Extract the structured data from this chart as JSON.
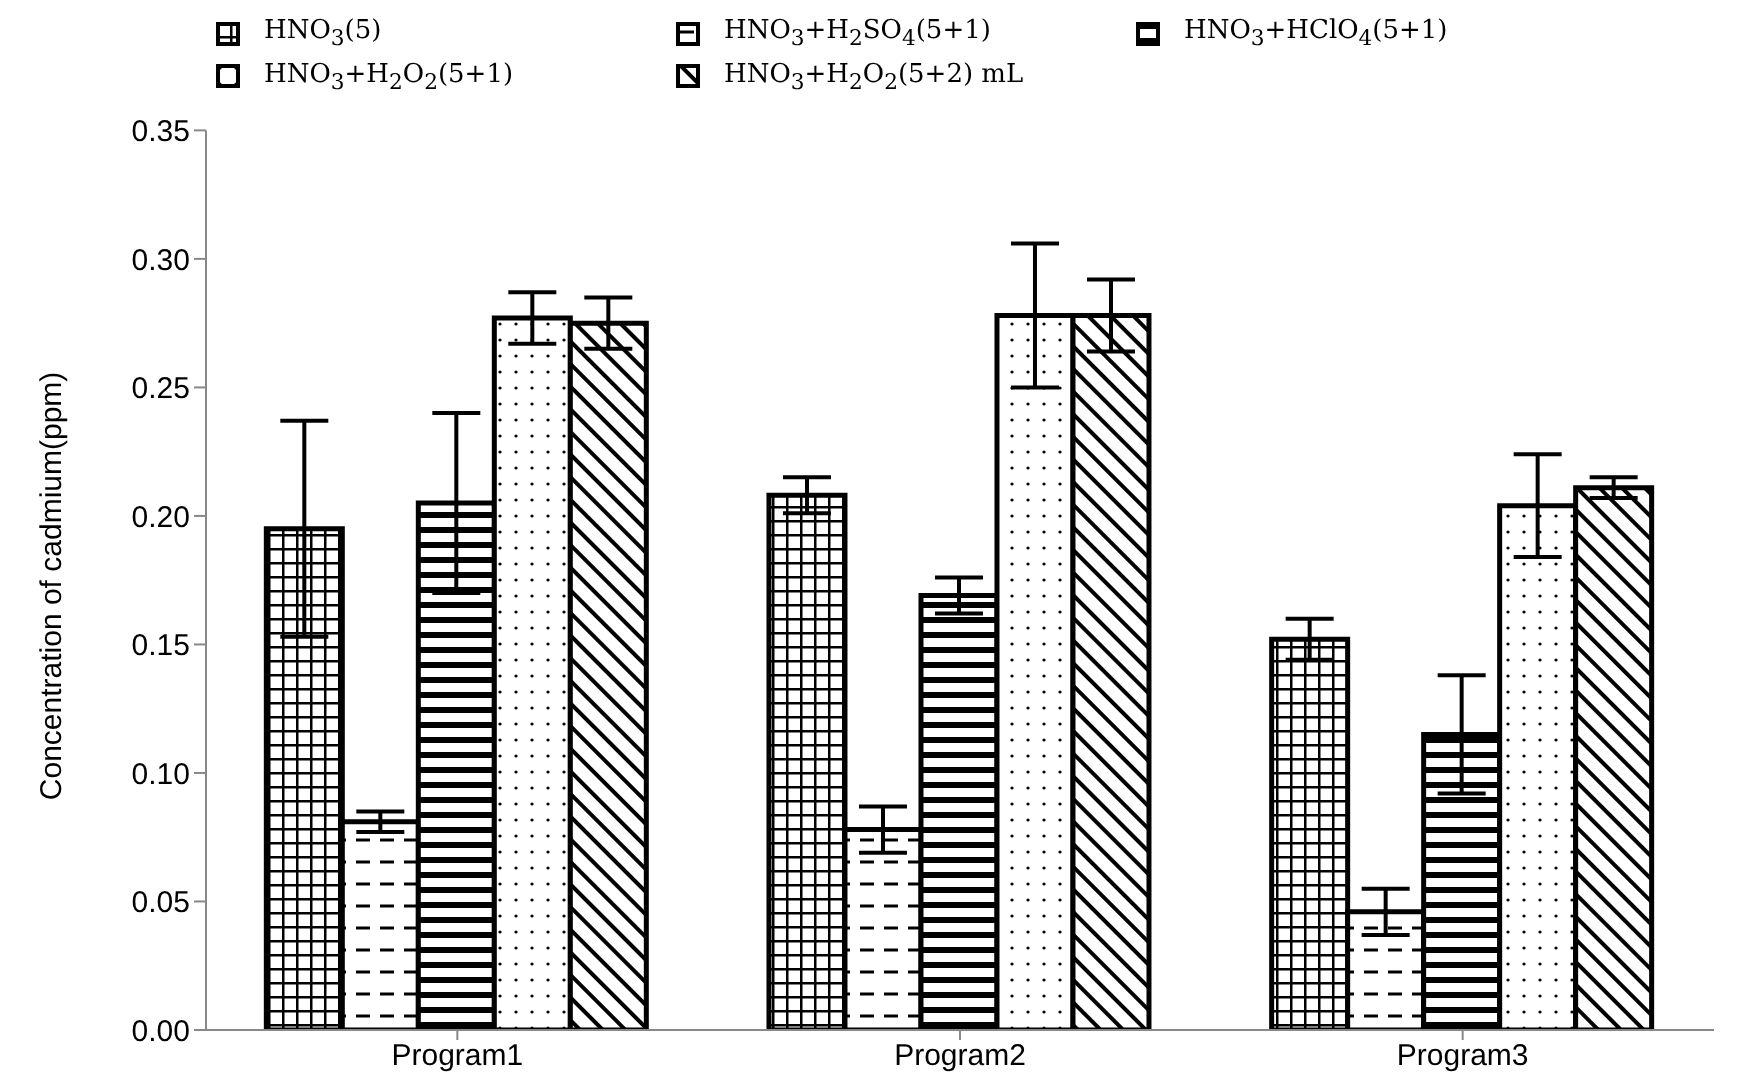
{
  "chart_data": {
    "type": "bar",
    "ylabel": "Concentration of cadmium(ppm)",
    "categories": [
      "Program1",
      "Program2",
      "Program3"
    ],
    "series": [
      {
        "name": "HNO$_{3}$(5)",
        "color": "#000000",
        "values": [
          0.195,
          0.208,
          0.152
        ],
        "errors": [
          0.042,
          0.007,
          0.008
        ]
      },
      {
        "name": "HNO$_{3}$+H$_{2}$SO$_{4}$(5+1)",
        "color": "#000000",
        "values": [
          0.081,
          0.078,
          0.046
        ],
        "errors": [
          0.004,
          0.009,
          0.009
        ]
      },
      {
        "name": "HNO$_{3}$+HClO$_{4}$(5+1)",
        "color": "#000000",
        "values": [
          0.205,
          0.169,
          0.115
        ],
        "errors": [
          0.035,
          0.007,
          0.023
        ]
      },
      {
        "name": "HNO$_{3}$+H$_{2}$O$_{2}$(5+1)",
        "color": "#000000",
        "values": [
          0.277,
          0.278,
          0.204
        ],
        "errors": [
          0.01,
          0.028,
          0.02
        ]
      },
      {
        "name": "HNO$_{3}$+H$_{2}$O$_{2}$(5+2) mL",
        "color": "#000000",
        "values": [
          0.275,
          0.278,
          0.211
        ],
        "errors": [
          0.01,
          0.014,
          0.004
        ]
      }
    ],
    "ylim": [
      0,
      0.35
    ],
    "yticks": [
      {
        "value": 0,
        "label": "0.00"
      },
      {
        "value": 0.05,
        "label": "0.05"
      },
      {
        "value": 0.1,
        "label": "0.10"
      },
      {
        "value": 0.15,
        "label": "0.15"
      },
      {
        "value": 0.2,
        "label": "0.20"
      },
      {
        "value": 0.25,
        "label": "0.25"
      },
      {
        "value": 0.3,
        "label": "0.30"
      },
      {
        "value": 0.35,
        "label": "0.35"
      }
    ],
    "grid": false,
    "legend": "top"
  }
}
